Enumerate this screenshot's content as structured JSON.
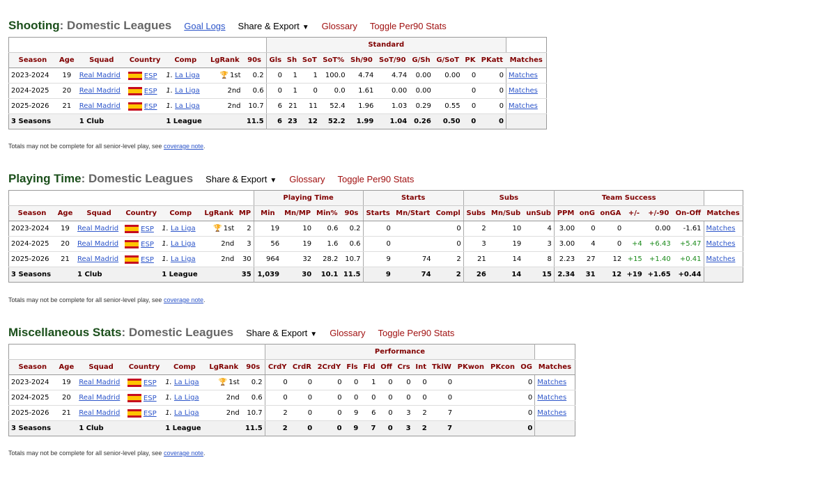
{
  "note": {
    "text": "Totals may not be complete for all senior-level play, see ",
    "link": "coverage note",
    "end": "."
  },
  "common": {
    "share_export": "Share & Export",
    "glossary": "Glossary",
    "toggle_per90": "Toggle Per90 Stats",
    "caret": "▼",
    "trophy": "🏆"
  },
  "rows_base": [
    {
      "season": "2023-2024",
      "age": "19",
      "squad": "Real Madrid",
      "country": "ESP",
      "comp": "1. La Liga",
      "lgrank": "1st",
      "trophy": true
    },
    {
      "season": "2024-2025",
      "age": "20",
      "squad": "Real Madrid",
      "country": "ESP",
      "comp": "1. La Liga",
      "lgrank": "2nd",
      "trophy": false
    },
    {
      "season": "2025-2026",
      "age": "21",
      "squad": "Real Madrid",
      "country": "ESP",
      "comp": "1. La Liga",
      "lgrank": "2nd",
      "trophy": false
    }
  ],
  "foot_base": {
    "season": "3 Seasons",
    "squad": "1 Club",
    "comp": "1 League"
  },
  "shooting": {
    "title": "Shooting",
    "subtitle": ": Domestic Leagues",
    "goal_logs": "Goal Logs",
    "group": "Standard",
    "columns": [
      "Season",
      "Age",
      "Squad",
      "Country",
      "Comp",
      "LgRank",
      "90s",
      "Gls",
      "Sh",
      "SoT",
      "SoT%",
      "Sh/90",
      "SoT/90",
      "G/Sh",
      "G/SoT",
      "PK",
      "PKatt",
      "Matches"
    ],
    "rows": [
      [
        "0.2",
        "0",
        "1",
        "1",
        "100.0",
        "4.74",
        "4.74",
        "0.00",
        "0.00",
        "0",
        "0"
      ],
      [
        "0.6",
        "0",
        "1",
        "0",
        "0.0",
        "1.61",
        "0.00",
        "0.00",
        "",
        "0",
        "0"
      ],
      [
        "10.7",
        "6",
        "21",
        "11",
        "52.4",
        "1.96",
        "1.03",
        "0.29",
        "0.55",
        "0",
        "0"
      ]
    ],
    "foot": [
      "11.5",
      "6",
      "23",
      "12",
      "52.2",
      "1.99",
      "1.04",
      "0.26",
      "0.50",
      "0",
      "0"
    ],
    "matches": "Matches"
  },
  "playing_time": {
    "title": "Playing Time",
    "subtitle": ": Domestic Leagues",
    "groups": [
      "Playing Time",
      "Starts",
      "Subs",
      "Team Success"
    ],
    "columns": [
      "Season",
      "Age",
      "Squad",
      "Country",
      "Comp",
      "LgRank",
      "MP",
      "Min",
      "Mn/MP",
      "Min%",
      "90s",
      "Starts",
      "Mn/Start",
      "Compl",
      "Subs",
      "Mn/Sub",
      "unSub",
      "PPM",
      "onG",
      "onGA",
      "+/-",
      "+/-90",
      "On-Off",
      "Matches"
    ],
    "rows": [
      [
        "2",
        "19",
        "10",
        "0.6",
        "0.2",
        "0",
        "",
        "0",
        "2",
        "10",
        "4",
        "3.00",
        "0",
        "0",
        "",
        "0.00",
        "-1.61"
      ],
      [
        "3",
        "56",
        "19",
        "1.6",
        "0.6",
        "0",
        "",
        "0",
        "3",
        "19",
        "3",
        "3.00",
        "4",
        "0",
        "+4",
        "+6.43",
        "+5.47"
      ],
      [
        "30",
        "964",
        "32",
        "28.2",
        "10.7",
        "9",
        "74",
        "2",
        "21",
        "14",
        "8",
        "2.23",
        "27",
        "12",
        "+15",
        "+1.40",
        "+0.41"
      ]
    ],
    "foot": [
      "35",
      "1,039",
      "30",
      "10.1",
      "11.5",
      "9",
      "74",
      "2",
      "26",
      "14",
      "15",
      "2.34",
      "31",
      "12",
      "+19",
      "+1.65",
      "+0.44"
    ],
    "matches": "Matches"
  },
  "misc": {
    "title": "Miscellaneous Stats",
    "subtitle": ": Domestic Leagues",
    "group": "Performance",
    "columns": [
      "Season",
      "Age",
      "Squad",
      "Country",
      "Comp",
      "LgRank",
      "90s",
      "CrdY",
      "CrdR",
      "2CrdY",
      "Fls",
      "Fld",
      "Off",
      "Crs",
      "Int",
      "TklW",
      "PKwon",
      "PKcon",
      "OG",
      "Matches"
    ],
    "rows": [
      [
        "0.2",
        "0",
        "0",
        "0",
        "0",
        "1",
        "0",
        "0",
        "0",
        "0",
        "",
        "",
        "0"
      ],
      [
        "0.6",
        "0",
        "0",
        "0",
        "0",
        "0",
        "0",
        "0",
        "0",
        "0",
        "",
        "",
        "0"
      ],
      [
        "10.7",
        "2",
        "0",
        "0",
        "9",
        "6",
        "0",
        "3",
        "2",
        "7",
        "",
        "",
        "0"
      ]
    ],
    "foot": [
      "11.5",
      "2",
      "0",
      "0",
      "9",
      "7",
      "0",
      "3",
      "2",
      "7",
      "",
      "",
      "0"
    ],
    "matches": "Matches"
  },
  "colors": {
    "title_green": "#1b4f1b",
    "header_red": "#800000",
    "link_blue": "#2b54c9",
    "positive_green": "#1a8a1a"
  }
}
